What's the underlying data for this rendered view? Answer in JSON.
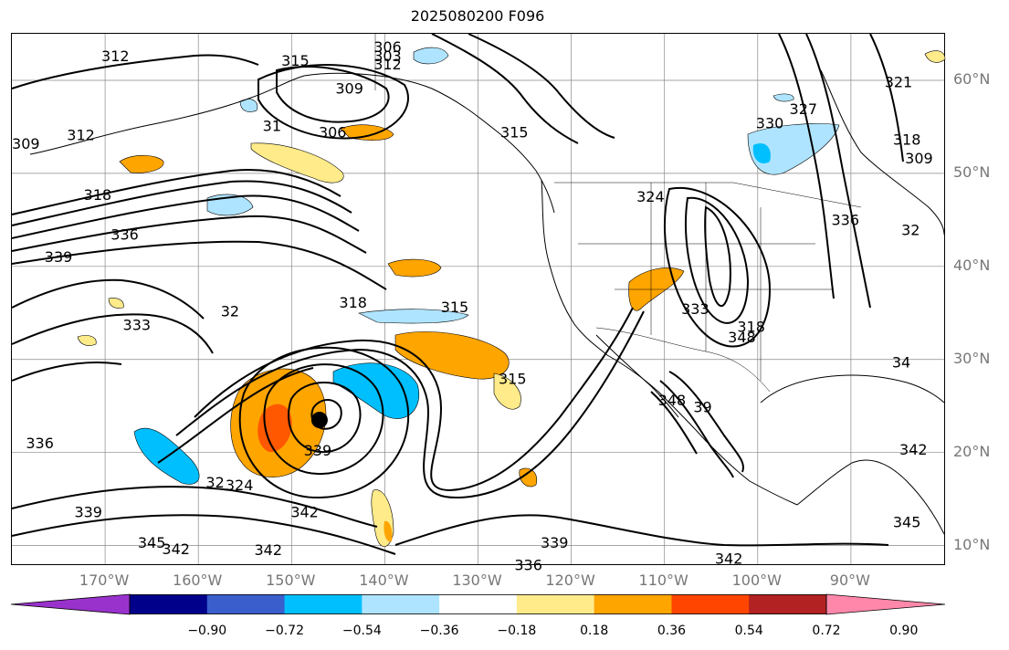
{
  "title": "2025080200 F096",
  "map": {
    "lon_range": [
      -180,
      -80
    ],
    "lat_range": [
      8,
      65
    ],
    "projection": "PlateCarree",
    "gridlines": true,
    "latitude_labels": [
      {
        "lat": 60,
        "text": "60°N"
      },
      {
        "lat": 50,
        "text": "50°N"
      },
      {
        "lat": 40,
        "text": "40°N"
      },
      {
        "lat": 30,
        "text": "30°N"
      },
      {
        "lat": 20,
        "text": "20°N"
      },
      {
        "lat": 10,
        "text": "10°N"
      }
    ],
    "longitude_labels": [
      {
        "lon": -170,
        "text": "170°W"
      },
      {
        "lon": -160,
        "text": "160°W"
      },
      {
        "lon": -150,
        "text": "150°W"
      },
      {
        "lon": -140,
        "text": "140°W"
      },
      {
        "lon": -130,
        "text": "130°W"
      },
      {
        "lon": -120,
        "text": "120°W"
      },
      {
        "lon": -110,
        "text": "110°W"
      },
      {
        "lon": -100,
        "text": "100°W"
      },
      {
        "lon": -90,
        "text": "90°W"
      }
    ],
    "marker": {
      "lon": -147,
      "lat": 23.5,
      "symbol": "filled-circle"
    },
    "contour_labels": [
      {
        "lon": -168.9,
        "lat": 62.5,
        "text": "312"
      },
      {
        "lon": -149.6,
        "lat": 62.0,
        "text": "315"
      },
      {
        "lon": -139.7,
        "lat": 63.5,
        "text": "306"
      },
      {
        "lon": -139.7,
        "lat": 62.5,
        "text": "303"
      },
      {
        "lon": -139.7,
        "lat": 61.6,
        "text": "312"
      },
      {
        "lon": -143.8,
        "lat": 59.0,
        "text": "309"
      },
      {
        "lon": -145.6,
        "lat": 54.3,
        "text": "306"
      },
      {
        "lon": -152.1,
        "lat": 55.0,
        "text": "31"
      },
      {
        "lon": -178.5,
        "lat": 53.1,
        "text": "309"
      },
      {
        "lon": -172.6,
        "lat": 54.0,
        "text": "312"
      },
      {
        "lon": -170.8,
        "lat": 47.6,
        "text": "318"
      },
      {
        "lon": -167.9,
        "lat": 43.3,
        "text": "336"
      },
      {
        "lon": -175.0,
        "lat": 40.9,
        "text": "339"
      },
      {
        "lon": -143.4,
        "lat": 36.0,
        "text": "318"
      },
      {
        "lon": -132.5,
        "lat": 35.5,
        "text": "315"
      },
      {
        "lon": -156.6,
        "lat": 35.1,
        "text": "32"
      },
      {
        "lon": -166.6,
        "lat": 33.6,
        "text": "333"
      },
      {
        "lon": -126.1,
        "lat": 54.3,
        "text": "315"
      },
      {
        "lon": -111.5,
        "lat": 47.4,
        "text": "324"
      },
      {
        "lon": -98.7,
        "lat": 55.3,
        "text": "330"
      },
      {
        "lon": -95.1,
        "lat": 56.8,
        "text": "327"
      },
      {
        "lon": -84.9,
        "lat": 59.7,
        "text": "321"
      },
      {
        "lon": -84.0,
        "lat": 53.5,
        "text": "318"
      },
      {
        "lon": -82.7,
        "lat": 51.5,
        "text": "309"
      },
      {
        "lon": -90.6,
        "lat": 44.9,
        "text": "336"
      },
      {
        "lon": -83.6,
        "lat": 43.8,
        "text": "32"
      },
      {
        "lon": -106.7,
        "lat": 35.3,
        "text": "333"
      },
      {
        "lon": -100.7,
        "lat": 33.4,
        "text": "318"
      },
      {
        "lon": -101.7,
        "lat": 32.3,
        "text": "348"
      },
      {
        "lon": -84.6,
        "lat": 29.6,
        "text": "34"
      },
      {
        "lon": -126.3,
        "lat": 27.8,
        "text": "315"
      },
      {
        "lon": -109.2,
        "lat": 25.5,
        "text": "348"
      },
      {
        "lon": -105.9,
        "lat": 24.8,
        "text": "39"
      },
      {
        "lon": -177.0,
        "lat": 20.9,
        "text": "336"
      },
      {
        "lon": -147.2,
        "lat": 20.1,
        "text": "339"
      },
      {
        "lon": -155.6,
        "lat": 16.4,
        "text": "324"
      },
      {
        "lon": -158.2,
        "lat": 16.7,
        "text": "32"
      },
      {
        "lon": -148.6,
        "lat": 13.5,
        "text": "342"
      },
      {
        "lon": -171.8,
        "lat": 13.5,
        "text": "339"
      },
      {
        "lon": -121.8,
        "lat": 10.2,
        "text": "339"
      },
      {
        "lon": -124.6,
        "lat": 7.8,
        "text": "336"
      },
      {
        "lon": -103.1,
        "lat": 8.5,
        "text": "342"
      },
      {
        "lon": -165.0,
        "lat": 10.2,
        "text": "345"
      },
      {
        "lon": -162.4,
        "lat": 9.5,
        "text": "342"
      },
      {
        "lon": -152.5,
        "lat": 9.4,
        "text": "342"
      },
      {
        "lon": -83.3,
        "lat": 20.2,
        "text": "342"
      },
      {
        "lon": -84.0,
        "lat": 12.4,
        "text": "345"
      }
    ]
  },
  "colorbar": {
    "levels": [
      "−0.90",
      "−0.72",
      "−0.54",
      "−0.36",
      "−0.18",
      "0.18",
      "0.36",
      "0.54",
      "0.72",
      "0.90"
    ],
    "colors": [
      "#9932CC",
      "#00008B",
      "#3A5FCD",
      "#00BFFF",
      "#AEE4FF",
      "#FFFFFF",
      "#FFEB8A",
      "#FFA500",
      "#FF4500",
      "#B22222",
      "#FF88AA"
    ],
    "extend": "both"
  }
}
